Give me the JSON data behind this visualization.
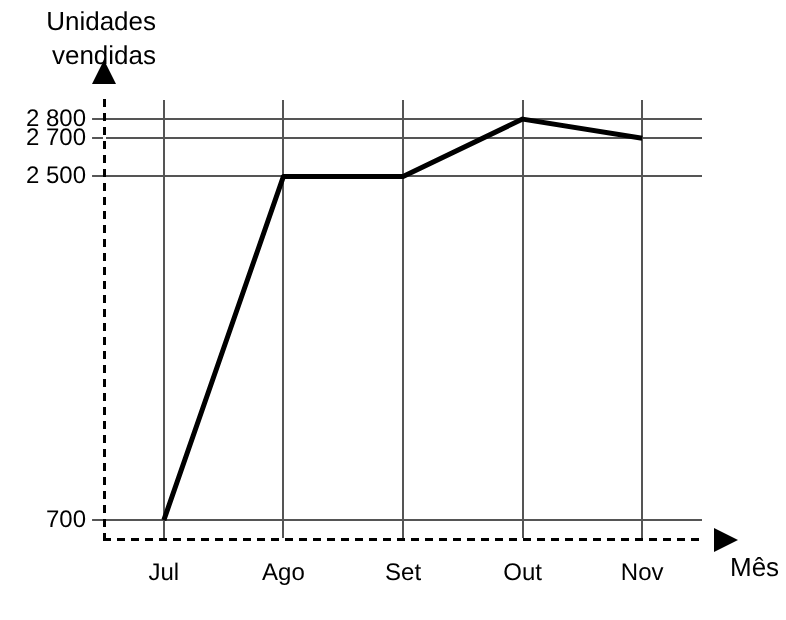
{
  "chart_data": {
    "type": "line",
    "xlabel": "Mês",
    "ylabel": "Unidades vendidas",
    "categories": [
      "Jul",
      "Ago",
      "Set",
      "Out",
      "Nov"
    ],
    "values": [
      700,
      2500,
      2500,
      2800,
      2700
    ],
    "color": "#000000",
    "ylim": [
      600,
      2900
    ],
    "yticks": [
      {
        "value": 700,
        "label": "700"
      },
      {
        "value": 2500,
        "label": "2 500"
      },
      {
        "value": 2700,
        "label": "2 700"
      },
      {
        "value": 2800,
        "label": "2 800"
      }
    ],
    "grid": true,
    "legend": false,
    "marker": "none",
    "line_style": "solid"
  }
}
